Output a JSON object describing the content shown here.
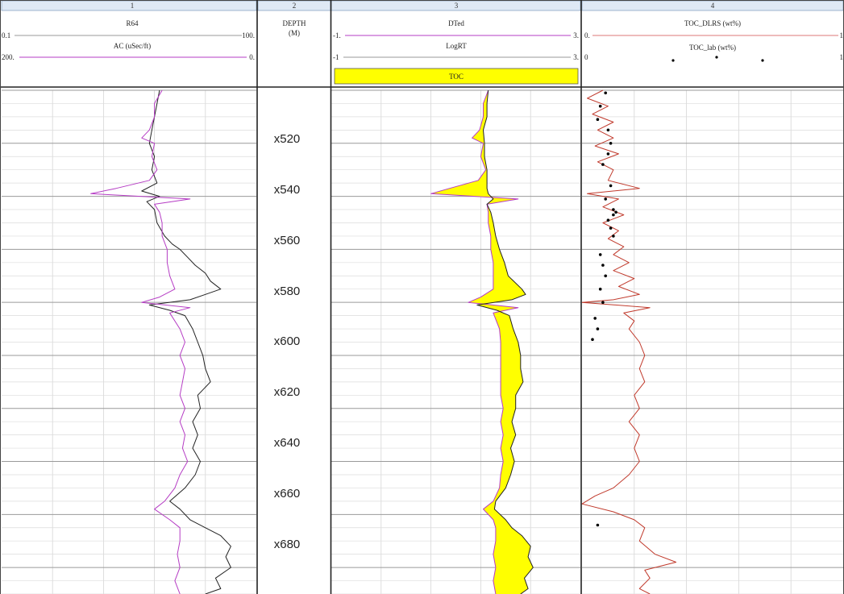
{
  "tracks": [
    {
      "number": "1",
      "curves": [
        {
          "name": "R64",
          "scale_left": "0.1",
          "scale_right": "100.",
          "color": "#222222"
        },
        {
          "name": "AC (uSec/ft)",
          "scale_left": "200.",
          "scale_right": "0.",
          "color": "#b53cc4"
        }
      ]
    },
    {
      "number": "2",
      "title": "DEPTH",
      "unit": "(M)"
    },
    {
      "number": "3",
      "curves": [
        {
          "name": "DTed",
          "scale_left": "-1.",
          "scale_right": "3.",
          "color": "#b53cc4"
        },
        {
          "name": "LogRT",
          "scale_left": "-1",
          "scale_right": "3.",
          "color": "#222222"
        }
      ],
      "fill_label": "TOC",
      "fill_color": "#ffff00"
    },
    {
      "number": "4",
      "curves": [
        {
          "name": "TOC_DLRS (wt%)",
          "scale_left": "0.",
          "scale_right": "1",
          "color": "#c0392b"
        },
        {
          "name": "TOC_lab (wt%)",
          "scale_left": "0",
          "scale_right": "1",
          "color": "#000000"
        }
      ]
    }
  ],
  "depth_labels": [
    "x520",
    "x540",
    "x560",
    "x580",
    "x600",
    "x620",
    "x640",
    "x660",
    "x680"
  ],
  "chart_data": {
    "type": "line",
    "y_axis": "depth (M), increasing downward",
    "depth_range": [
      500,
      690
    ],
    "depth_ticks": [
      520,
      540,
      560,
      580,
      600,
      620,
      640,
      660,
      680
    ],
    "grid": true,
    "series": [
      {
        "name": "R64",
        "track": 1,
        "x_range": [
          0,
          1
        ],
        "color": "#222222",
        "points": [
          [
            500,
            0.62
          ],
          [
            505,
            0.61
          ],
          [
            510,
            0.6
          ],
          [
            515,
            0.59
          ],
          [
            520,
            0.58
          ],
          [
            525,
            0.6
          ],
          [
            530,
            0.59
          ],
          [
            535,
            0.61
          ],
          [
            538,
            0.55
          ],
          [
            540,
            0.62
          ],
          [
            542,
            0.57
          ],
          [
            545,
            0.6
          ],
          [
            550,
            0.61
          ],
          [
            555,
            0.64
          ],
          [
            558,
            0.67
          ],
          [
            560,
            0.7
          ],
          [
            563,
            0.73
          ],
          [
            566,
            0.76
          ],
          [
            569,
            0.8
          ],
          [
            572,
            0.82
          ],
          [
            575,
            0.86
          ],
          [
            577,
            0.8
          ],
          [
            579,
            0.74
          ],
          [
            581,
            0.58
          ],
          [
            583,
            0.66
          ],
          [
            585,
            0.72
          ],
          [
            590,
            0.75
          ],
          [
            595,
            0.77
          ],
          [
            600,
            0.79
          ],
          [
            605,
            0.8
          ],
          [
            610,
            0.82
          ],
          [
            615,
            0.77
          ],
          [
            620,
            0.78
          ],
          [
            625,
            0.75
          ],
          [
            630,
            0.77
          ],
          [
            635,
            0.75
          ],
          [
            640,
            0.78
          ],
          [
            645,
            0.76
          ],
          [
            650,
            0.72
          ],
          [
            655,
            0.66
          ],
          [
            658,
            0.7
          ],
          [
            662,
            0.74
          ],
          [
            665,
            0.8
          ],
          [
            668,
            0.86
          ],
          [
            672,
            0.9
          ],
          [
            676,
            0.88
          ],
          [
            680,
            0.9
          ],
          [
            684,
            0.84
          ],
          [
            688,
            0.86
          ],
          [
            690,
            0.8
          ]
        ]
      },
      {
        "name": "AC (uSec/ft)",
        "track": 1,
        "x_range": [
          0,
          1
        ],
        "color": "#b53cc4",
        "points": [
          [
            500,
            0.63
          ],
          [
            505,
            0.6
          ],
          [
            510,
            0.6
          ],
          [
            515,
            0.58
          ],
          [
            518,
            0.55
          ],
          [
            520,
            0.6
          ],
          [
            525,
            0.59
          ],
          [
            530,
            0.61
          ],
          [
            534,
            0.58
          ],
          [
            537,
            0.45
          ],
          [
            539,
            0.35
          ],
          [
            541,
            0.74
          ],
          [
            543,
            0.6
          ],
          [
            546,
            0.62
          ],
          [
            550,
            0.63
          ],
          [
            555,
            0.63
          ],
          [
            560,
            0.65
          ],
          [
            565,
            0.65
          ],
          [
            570,
            0.66
          ],
          [
            575,
            0.68
          ],
          [
            578,
            0.62
          ],
          [
            580,
            0.55
          ],
          [
            582,
            0.74
          ],
          [
            584,
            0.66
          ],
          [
            590,
            0.7
          ],
          [
            595,
            0.72
          ],
          [
            600,
            0.7
          ],
          [
            605,
            0.72
          ],
          [
            610,
            0.71
          ],
          [
            615,
            0.7
          ],
          [
            620,
            0.72
          ],
          [
            625,
            0.7
          ],
          [
            630,
            0.72
          ],
          [
            635,
            0.71
          ],
          [
            640,
            0.73
          ],
          [
            645,
            0.7
          ],
          [
            650,
            0.68
          ],
          [
            655,
            0.64
          ],
          [
            658,
            0.6
          ],
          [
            662,
            0.66
          ],
          [
            665,
            0.7
          ],
          [
            670,
            0.7
          ],
          [
            675,
            0.69
          ],
          [
            680,
            0.7
          ],
          [
            685,
            0.68
          ],
          [
            690,
            0.7
          ]
        ]
      },
      {
        "name": "DTed",
        "track": 3,
        "x_range": [
          -1,
          3
        ],
        "color": "#b53cc4",
        "points": [
          [
            500,
            1.52
          ],
          [
            505,
            1.44
          ],
          [
            510,
            1.44
          ],
          [
            515,
            1.38
          ],
          [
            518,
            1.26
          ],
          [
            520,
            1.44
          ],
          [
            525,
            1.4
          ],
          [
            530,
            1.48
          ],
          [
            534,
            1.36
          ],
          [
            537,
            0.9
          ],
          [
            539,
            0.6
          ],
          [
            541,
            2.0
          ],
          [
            543,
            1.5
          ],
          [
            546,
            1.52
          ],
          [
            550,
            1.52
          ],
          [
            555,
            1.56
          ],
          [
            560,
            1.56
          ],
          [
            565,
            1.6
          ],
          [
            570,
            1.6
          ],
          [
            575,
            1.6
          ],
          [
            578,
            1.4
          ],
          [
            580,
            1.2
          ],
          [
            582,
            2.0
          ],
          [
            584,
            1.6
          ],
          [
            590,
            1.7
          ],
          [
            595,
            1.72
          ],
          [
            600,
            1.72
          ],
          [
            605,
            1.72
          ],
          [
            610,
            1.72
          ],
          [
            615,
            1.72
          ],
          [
            620,
            1.76
          ],
          [
            625,
            1.72
          ],
          [
            630,
            1.76
          ],
          [
            635,
            1.72
          ],
          [
            640,
            1.76
          ],
          [
            645,
            1.72
          ],
          [
            650,
            1.7
          ],
          [
            655,
            1.6
          ],
          [
            658,
            1.44
          ],
          [
            662,
            1.6
          ],
          [
            665,
            1.64
          ],
          [
            670,
            1.64
          ],
          [
            675,
            1.6
          ],
          [
            680,
            1.64
          ],
          [
            685,
            1.6
          ],
          [
            690,
            1.64
          ]
        ]
      },
      {
        "name": "LogRT",
        "track": 3,
        "x_range": [
          -1,
          3
        ],
        "color": "#222222",
        "points": [
          [
            500,
            1.52
          ],
          [
            505,
            1.5
          ],
          [
            510,
            1.5
          ],
          [
            515,
            1.44
          ],
          [
            520,
            1.46
          ],
          [
            525,
            1.46
          ],
          [
            530,
            1.5
          ],
          [
            534,
            1.5
          ],
          [
            537,
            1.5
          ],
          [
            539,
            1.52
          ],
          [
            541,
            1.6
          ],
          [
            543,
            1.5
          ],
          [
            546,
            1.56
          ],
          [
            550,
            1.6
          ],
          [
            555,
            1.64
          ],
          [
            560,
            1.7
          ],
          [
            565,
            1.78
          ],
          [
            570,
            1.84
          ],
          [
            575,
            2.06
          ],
          [
            577,
            2.12
          ],
          [
            579,
            1.9
          ],
          [
            581,
            1.34
          ],
          [
            583,
            1.66
          ],
          [
            585,
            1.86
          ],
          [
            590,
            1.92
          ],
          [
            595,
            2.0
          ],
          [
            600,
            2.04
          ],
          [
            605,
            2.04
          ],
          [
            610,
            2.08
          ],
          [
            615,
            1.96
          ],
          [
            620,
            1.96
          ],
          [
            625,
            1.9
          ],
          [
            630,
            1.96
          ],
          [
            635,
            1.88
          ],
          [
            640,
            1.94
          ],
          [
            645,
            1.88
          ],
          [
            650,
            1.8
          ],
          [
            655,
            1.64
          ],
          [
            658,
            1.62
          ],
          [
            662,
            1.8
          ],
          [
            665,
            1.9
          ],
          [
            668,
            2.06
          ],
          [
            672,
            2.2
          ],
          [
            676,
            2.16
          ],
          [
            680,
            2.24
          ],
          [
            684,
            2.1
          ],
          [
            688,
            2.16
          ],
          [
            690,
            2.04
          ]
        ]
      },
      {
        "name": "TOC_DLRS (wt%)",
        "track": 4,
        "x_range": [
          0,
          1
        ],
        "color": "#c0392b",
        "points": [
          [
            500,
            0.08
          ],
          [
            503,
            0.02
          ],
          [
            506,
            0.1
          ],
          [
            509,
            0.04
          ],
          [
            512,
            0.12
          ],
          [
            515,
            0.06
          ],
          [
            518,
            0.12
          ],
          [
            521,
            0.05
          ],
          [
            524,
            0.14
          ],
          [
            527,
            0.06
          ],
          [
            530,
            0.12
          ],
          [
            534,
            0.1
          ],
          [
            537,
            0.22
          ],
          [
            539,
            0.02
          ],
          [
            541,
            0.14
          ],
          [
            544,
            0.08
          ],
          [
            547,
            0.16
          ],
          [
            550,
            0.08
          ],
          [
            553,
            0.14
          ],
          [
            556,
            0.1
          ],
          [
            559,
            0.16
          ],
          [
            562,
            0.12
          ],
          [
            565,
            0.18
          ],
          [
            568,
            0.12
          ],
          [
            571,
            0.2
          ],
          [
            574,
            0.14
          ],
          [
            577,
            0.22
          ],
          [
            579,
            0.12
          ],
          [
            580,
            0.0
          ],
          [
            582,
            0.26
          ],
          [
            584,
            0.16
          ],
          [
            587,
            0.2
          ],
          [
            590,
            0.18
          ],
          [
            595,
            0.22
          ],
          [
            600,
            0.24
          ],
          [
            605,
            0.22
          ],
          [
            610,
            0.24
          ],
          [
            615,
            0.2
          ],
          [
            620,
            0.22
          ],
          [
            625,
            0.18
          ],
          [
            630,
            0.22
          ],
          [
            635,
            0.2
          ],
          [
            640,
            0.22
          ],
          [
            645,
            0.18
          ],
          [
            650,
            0.12
          ],
          [
            653,
            0.05
          ],
          [
            656,
            0.0
          ],
          [
            659,
            0.12
          ],
          [
            662,
            0.2
          ],
          [
            665,
            0.24
          ],
          [
            670,
            0.22
          ],
          [
            675,
            0.28
          ],
          [
            678,
            0.36
          ],
          [
            681,
            0.24
          ],
          [
            684,
            0.26
          ],
          [
            688,
            0.22
          ],
          [
            690,
            0.26
          ]
        ]
      },
      {
        "name": "TOC_lab (wt%)",
        "track": 4,
        "x_range": [
          0,
          1
        ],
        "color": "#000000",
        "style": "points",
        "points": [
          [
            501,
            0.09
          ],
          [
            506,
            0.07
          ],
          [
            511,
            0.06
          ],
          [
            515,
            0.1
          ],
          [
            520,
            0.11
          ],
          [
            524,
            0.1
          ],
          [
            528,
            0.08
          ],
          [
            536,
            0.11
          ],
          [
            541,
            0.09
          ],
          [
            545,
            0.12
          ],
          [
            546,
            0.13
          ],
          [
            547,
            0.12
          ],
          [
            549,
            0.1
          ],
          [
            552,
            0.11
          ],
          [
            555,
            0.12
          ],
          [
            562,
            0.07
          ],
          [
            566,
            0.08
          ],
          [
            570,
            0.09
          ],
          [
            575,
            0.07
          ],
          [
            580,
            0.08
          ],
          [
            586,
            0.05
          ],
          [
            590,
            0.06
          ],
          [
            594,
            0.04
          ],
          [
            664,
            0.06
          ]
        ]
      }
    ]
  }
}
